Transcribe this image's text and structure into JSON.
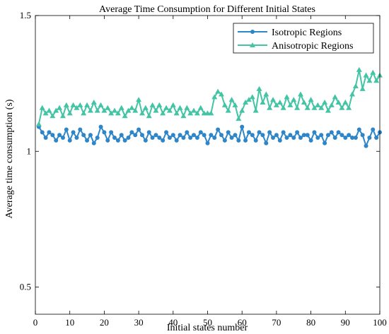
{
  "chart_data": {
    "type": "line",
    "title": "Average Time Consumption for Different Initial States",
    "xlabel": "Initial states number",
    "ylabel": "Average time consumption (s)",
    "xlim": [
      0,
      100
    ],
    "ylim": [
      0.4,
      1.5
    ],
    "xticks": [
      0,
      10,
      20,
      30,
      40,
      50,
      60,
      70,
      80,
      90,
      100
    ],
    "xtick_labels": [
      "0",
      "10",
      "20",
      "30",
      "40",
      "50",
      "60",
      "70",
      "80",
      "90",
      "100"
    ],
    "yticks": [
      0.5,
      1,
      1.5
    ],
    "ytick_labels": [
      "0.5",
      "1",
      "1.5"
    ],
    "grid": false,
    "legend_position": "top-right",
    "x": [
      1,
      2,
      3,
      4,
      5,
      6,
      7,
      8,
      9,
      10,
      11,
      12,
      13,
      14,
      15,
      16,
      17,
      18,
      19,
      20,
      21,
      22,
      23,
      24,
      25,
      26,
      27,
      28,
      29,
      30,
      31,
      32,
      33,
      34,
      35,
      36,
      37,
      38,
      39,
      40,
      41,
      42,
      43,
      44,
      45,
      46,
      47,
      48,
      49,
      50,
      51,
      52,
      53,
      54,
      55,
      56,
      57,
      58,
      59,
      60,
      61,
      62,
      63,
      64,
      65,
      66,
      67,
      68,
      69,
      70,
      71,
      72,
      73,
      74,
      75,
      76,
      77,
      78,
      79,
      80,
      81,
      82,
      83,
      84,
      85,
      86,
      87,
      88,
      89,
      90,
      91,
      92,
      93,
      94,
      95,
      96,
      97,
      98,
      99,
      100
    ],
    "series": [
      {
        "name": "Isotropic Regions",
        "color": "#2e86c8",
        "marker": "circle",
        "values": [
          1.09,
          1.07,
          1.05,
          1.07,
          1.06,
          1.04,
          1.06,
          1.05,
          1.08,
          1.04,
          1.07,
          1.05,
          1.08,
          1.06,
          1.04,
          1.06,
          1.03,
          1.05,
          1.09,
          1.07,
          1.04,
          1.07,
          1.05,
          1.04,
          1.06,
          1.04,
          1.05,
          1.07,
          1.06,
          1.08,
          1.06,
          1.04,
          1.07,
          1.05,
          1.06,
          1.05,
          1.04,
          1.07,
          1.05,
          1.06,
          1.04,
          1.06,
          1.05,
          1.07,
          1.05,
          1.06,
          1.05,
          1.07,
          1.06,
          1.03,
          1.06,
          1.05,
          1.08,
          1.06,
          1.04,
          1.07,
          1.05,
          1.06,
          1.04,
          1.09,
          1.04,
          1.07,
          1.06,
          1.04,
          1.07,
          1.06,
          1.03,
          1.07,
          1.05,
          1.06,
          1.04,
          1.07,
          1.05,
          1.06,
          1.05,
          1.07,
          1.05,
          1.06,
          1.06,
          1.04,
          1.07,
          1.05,
          1.06,
          1.03,
          1.06,
          1.07,
          1.05,
          1.07,
          1.06,
          1.05,
          1.06,
          1.05,
          1.05,
          1.08,
          1.06,
          1.02,
          1.05,
          1.08,
          1.05,
          1.07
        ]
      },
      {
        "name": "Anisotropic Regions",
        "color": "#43c4a4",
        "marker": "triangle",
        "values": [
          1.1,
          1.16,
          1.14,
          1.15,
          1.13,
          1.15,
          1.16,
          1.13,
          1.17,
          1.14,
          1.17,
          1.16,
          1.17,
          1.14,
          1.17,
          1.15,
          1.18,
          1.15,
          1.17,
          1.15,
          1.16,
          1.14,
          1.15,
          1.14,
          1.16,
          1.13,
          1.15,
          1.16,
          1.15,
          1.19,
          1.14,
          1.16,
          1.13,
          1.17,
          1.15,
          1.17,
          1.14,
          1.16,
          1.15,
          1.17,
          1.14,
          1.16,
          1.13,
          1.16,
          1.14,
          1.15,
          1.14,
          1.16,
          1.14,
          1.14,
          1.14,
          1.2,
          1.22,
          1.21,
          1.17,
          1.15,
          1.19,
          1.17,
          1.12,
          1.15,
          1.18,
          1.19,
          1.2,
          1.15,
          1.23,
          1.18,
          1.21,
          1.16,
          1.19,
          1.17,
          1.18,
          1.16,
          1.2,
          1.17,
          1.19,
          1.16,
          1.21,
          1.18,
          1.16,
          1.19,
          1.16,
          1.17,
          1.16,
          1.18,
          1.15,
          1.17,
          1.2,
          1.18,
          1.16,
          1.18,
          1.16,
          1.21,
          1.24,
          1.3,
          1.23,
          1.28,
          1.26,
          1.29,
          1.26,
          1.28
        ]
      }
    ]
  }
}
